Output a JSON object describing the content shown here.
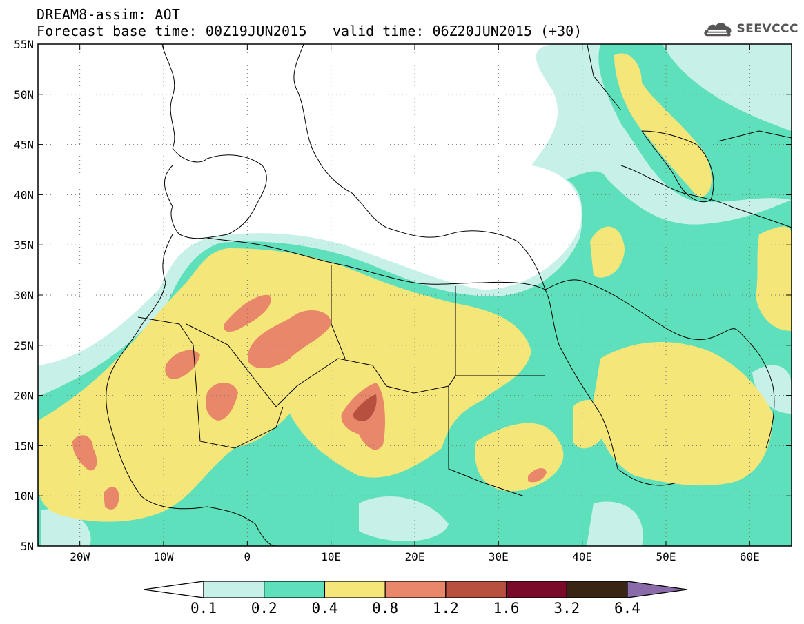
{
  "header": {
    "line1": "DREAM8-assim: AOT",
    "line2": "Forecast base time: 00Z19JUN2015",
    "valid": "valid time: 06Z20JUN2015 (+30)",
    "logo_text": "SEEVCCC",
    "logo_icon": "cloud-icon"
  },
  "map": {
    "lat_labels": [
      "55N",
      "50N",
      "45N",
      "40N",
      "35N",
      "30N",
      "25N",
      "20N",
      "15N",
      "10N",
      "5N"
    ],
    "lat_values": [
      55,
      50,
      45,
      40,
      35,
      30,
      25,
      20,
      15,
      10,
      5
    ],
    "lon_labels": [
      "20W",
      "10W",
      "0",
      "10E",
      "20E",
      "30E",
      "40E",
      "50E",
      "60E"
    ],
    "lon_values": [
      -20,
      -10,
      0,
      10,
      20,
      30,
      40,
      50,
      60
    ],
    "lon_range": [
      -25,
      65
    ],
    "lat_range": [
      5,
      55
    ]
  },
  "colorbar": {
    "labels": [
      "0.1",
      "0.2",
      "0.4",
      "0.8",
      "1.2",
      "1.6",
      "3.2",
      "6.4"
    ],
    "colors": [
      "#ffffff",
      "#c6f0e8",
      "#5ee0bc",
      "#f5e67a",
      "#e8876a",
      "#b85040",
      "#7a0a2a",
      "#3a2414",
      "#8a6aa8"
    ]
  },
  "palette": {
    "c1": "#c6f0e8",
    "c2": "#5ee0bc",
    "c3": "#f5e67a",
    "c4": "#e8876a",
    "c5": "#b85040"
  }
}
